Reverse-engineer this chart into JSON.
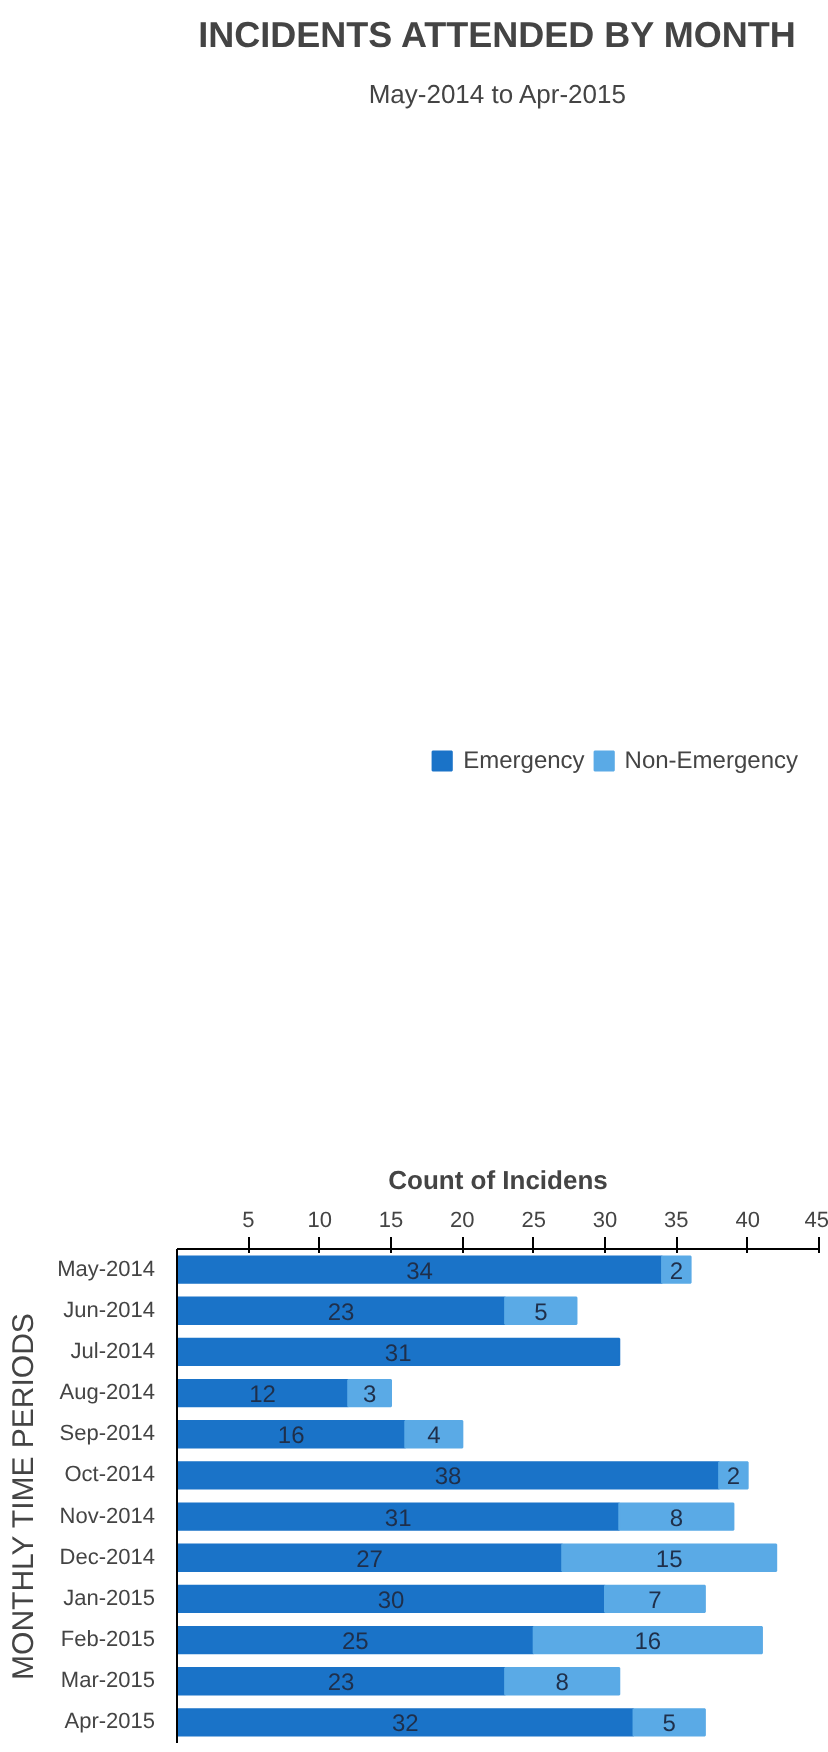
{
  "chart_data": {
    "type": "bar",
    "orientation": "horizontal",
    "stacked": true,
    "title": "INCIDENTS ATTENDED BY MONTH",
    "subtitle": "May-2014 to Apr-2015",
    "xlabel": "Count of Incidens",
    "ylabel": "MONTHLY TIME PERIODS",
    "categories": [
      "May-2014",
      "Jun-2014",
      "Jul-2014",
      "Aug-2014",
      "Sep-2014",
      "Oct-2014",
      "Nov-2014",
      "Dec-2014",
      "Jan-2015",
      "Feb-2015",
      "Mar-2015",
      "Apr-2015"
    ],
    "series": [
      {
        "name": "Emergency",
        "color": "#1a73c8",
        "values": [
          34,
          23,
          31,
          12,
          16,
          38,
          31,
          27,
          30,
          25,
          23,
          32
        ]
      },
      {
        "name": "Non-Emergency",
        "color": "#5aaae6",
        "values": [
          2,
          5,
          null,
          3,
          4,
          2,
          8,
          15,
          7,
          16,
          8,
          5
        ]
      }
    ],
    "xlim": [
      0,
      45
    ],
    "xticks": [
      5,
      10,
      15,
      20,
      25,
      30,
      35,
      40,
      45
    ],
    "data_labels": true,
    "legend": "top",
    "grid": false
  }
}
